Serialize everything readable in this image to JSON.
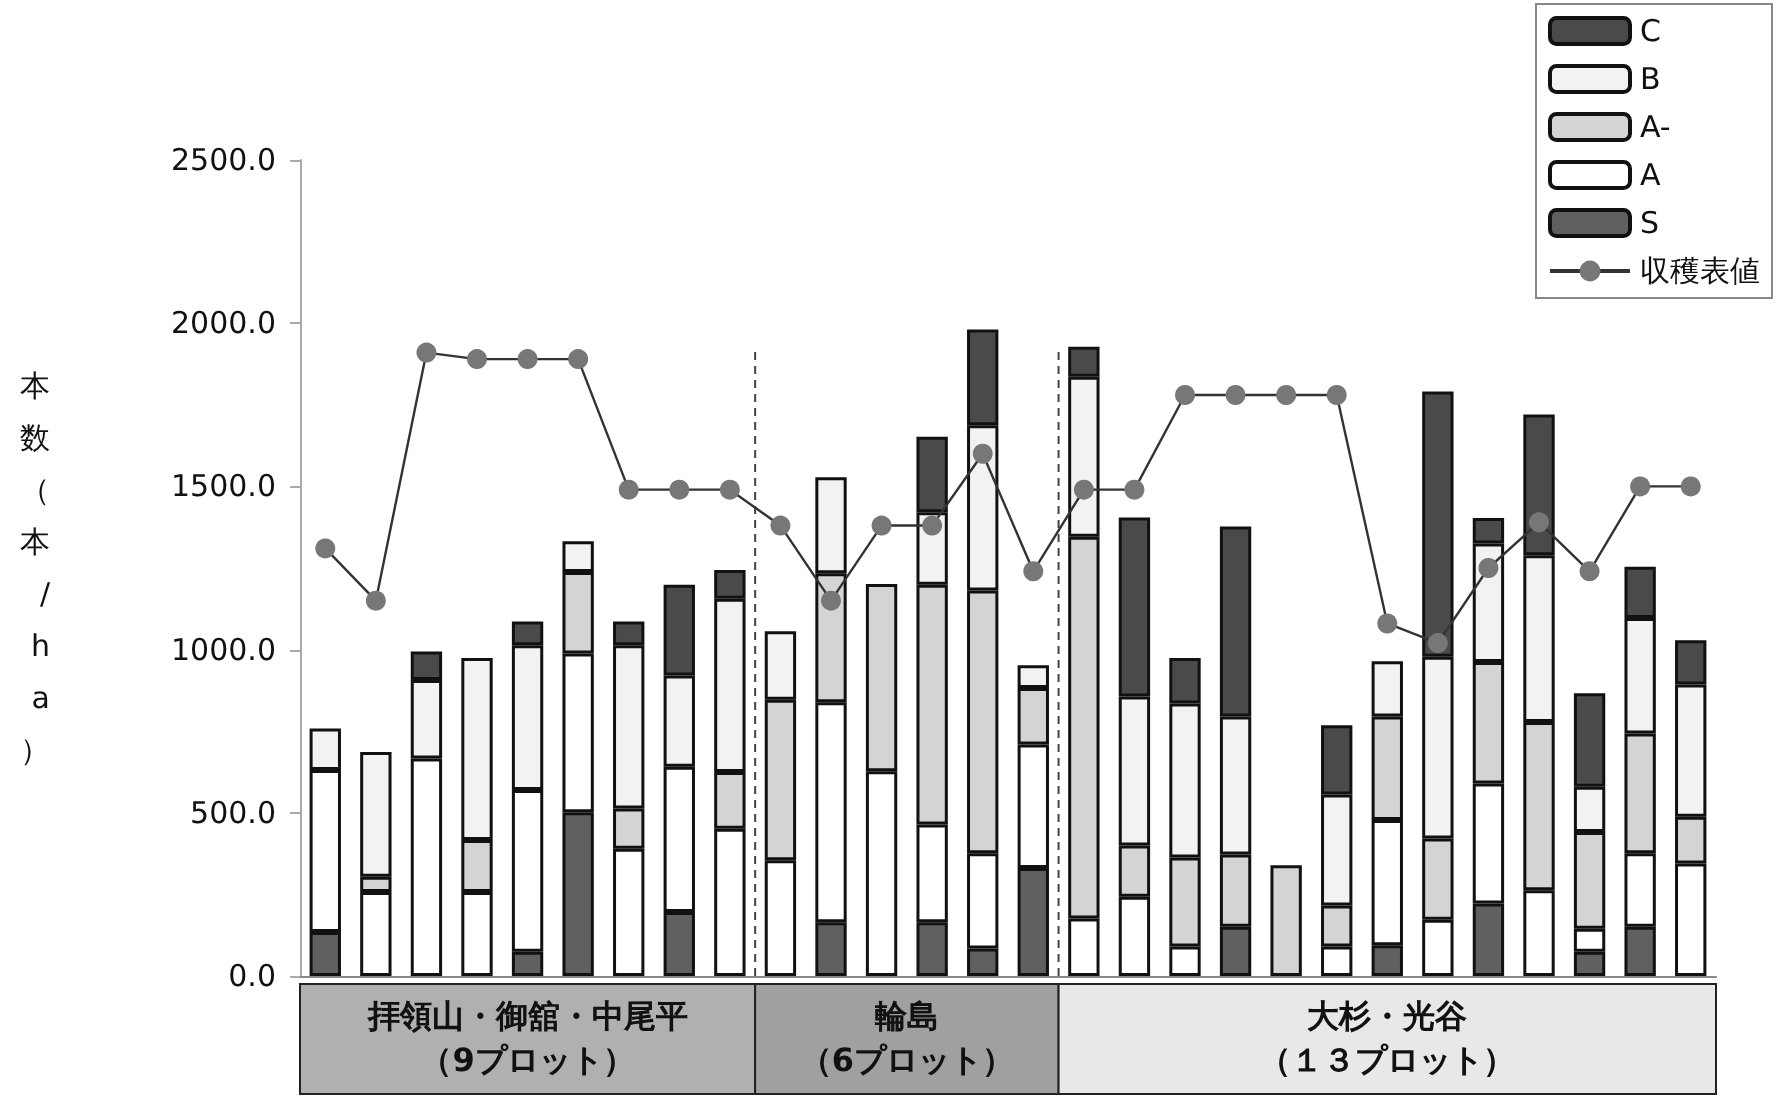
{
  "chart_data": {
    "type": "bar",
    "stacked": true,
    "ylabel": "本数（本/ha）",
    "categories": [
      null,
      null,
      null,
      null,
      null,
      null,
      null,
      null,
      null,
      null,
      null,
      null,
      null,
      null,
      null,
      null,
      null,
      null,
      null,
      null,
      null,
      null,
      null,
      null,
      null,
      null,
      null,
      null
    ],
    "series": [
      {
        "name": "S",
        "color": "#606060",
        "values": [
          135,
          null,
          null,
          null,
          74,
          502,
          null,
          196,
          null,
          null,
          165,
          null,
          165,
          84,
          331,
          null,
          null,
          null,
          151,
          null,
          null,
          94,
          null,
          222,
          null,
          74,
          151,
          null
        ]
      },
      {
        "name": "A",
        "color": "#ffffff",
        "values": [
          496,
          257,
          666,
          257,
          496,
          486,
          390,
          445,
          451,
          355,
          674,
          627,
          299,
          292,
          378,
          176,
          243,
          90,
          null,
          null,
          90,
          384,
          172,
          368,
          263,
          71,
          225,
          345
        ]
      },
      {
        "name": "A-",
        "color": "#d4d4d4",
        "values": [
          null,
          47,
          null,
          160,
          null,
          250,
          123,
          null,
          174,
          491,
          395,
          574,
          735,
          805,
          173,
          1170,
          157,
          273,
          221,
          339,
          126,
          317,
          249,
          372,
          515,
          296,
          367,
          143
        ]
      },
      {
        "name": "B",
        "color": "#f2f2f2",
        "values": [
          127,
          382,
          241,
          557,
          443,
          94,
          500,
          280,
          531,
          210,
          294,
          null,
          222,
          506,
          70,
          490,
          456,
          472,
          423,
          null,
          340,
          169,
          557,
          363,
          511,
          139,
          354,
          405
        ]
      },
      {
        "name": "C",
        "color": "#4a4a4a",
        "values": [
          null,
          null,
          87,
          null,
          73,
          null,
          73,
          278,
          88,
          null,
          null,
          null,
          231,
          294,
          null,
          92,
          549,
          139,
          582,
          null,
          212,
          null,
          813,
          78,
          431,
          286,
          157,
          136
        ]
      },
      {
        "name": "収穫表値",
        "type": "line",
        "color": "#777777",
        "marker": "circle",
        "values": [
          1310,
          1150,
          1910,
          1890,
          1890,
          1890,
          1490,
          1490,
          1490,
          1380,
          1150,
          1380,
          1380,
          1600,
          1240,
          1490,
          1490,
          1780,
          1780,
          1780,
          1780,
          1080,
          1020,
          1250,
          1390,
          1240,
          1500,
          1500
        ]
      }
    ],
    "ylim": [
      0,
      2500
    ],
    "yticks": [
      {
        "value": 0,
        "label": "0.0"
      },
      {
        "value": 500,
        "label": "500.0"
      },
      {
        "value": 1000,
        "label": "1000.0"
      },
      {
        "value": 1500,
        "label": "1500.0"
      },
      {
        "value": 2000,
        "label": "2000.0"
      },
      {
        "value": 2500,
        "label": "2500.0"
      }
    ],
    "annotations": [
      "拝領山・御舘・中尾平（9プロット）",
      "輪島（6プロット）",
      "大杉・光谷（１３プロット）"
    ],
    "legend": "top right",
    "grid": false
  }
}
